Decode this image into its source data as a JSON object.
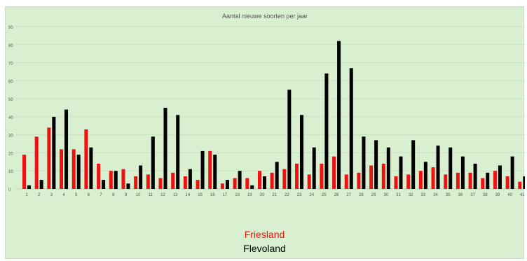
{
  "chart_data": {
    "type": "bar",
    "title": "Aantal nieuwe soorten per jaar",
    "xlabel": "",
    "ylabel": "",
    "ylim": [
      0,
      90
    ],
    "yticks": [
      0,
      10,
      20,
      30,
      40,
      50,
      60,
      70,
      80,
      90
    ],
    "grid": true,
    "legend_position": "bottom",
    "categories": [
      "1",
      "2",
      "3",
      "4",
      "5",
      "6",
      "7",
      "8",
      "9",
      "10",
      "11",
      "12",
      "13",
      "14",
      "15",
      "16",
      "17",
      "18",
      "19",
      "20",
      "21",
      "22",
      "23",
      "24",
      "25",
      "26",
      "27",
      "28",
      "29",
      "30",
      "31",
      "32",
      "33",
      "34",
      "35",
      "36",
      "37",
      "38",
      "39",
      "40",
      "41"
    ],
    "series": [
      {
        "name": "Friesland",
        "color": "#ee1111",
        "values": [
          19,
          29,
          34,
          22,
          22,
          33,
          14,
          10,
          11,
          7,
          8,
          6,
          9,
          7,
          5,
          21,
          3,
          6,
          6,
          10,
          9,
          11,
          14,
          8,
          14,
          18,
          8,
          9,
          13,
          14,
          7,
          8,
          10,
          12,
          8,
          9,
          9,
          6,
          10,
          7,
          4
        ]
      },
      {
        "name": "Flevoland",
        "color": "#000000",
        "values": [
          2,
          5,
          40,
          44,
          19,
          23,
          5,
          10,
          3,
          13,
          29,
          45,
          41,
          11,
          21,
          19,
          5,
          10,
          2,
          7,
          15,
          55,
          41,
          23,
          64,
          82,
          67,
          29,
          27,
          23,
          18,
          27,
          15,
          24,
          23,
          18,
          14,
          9,
          13,
          18,
          7
        ]
      }
    ]
  }
}
